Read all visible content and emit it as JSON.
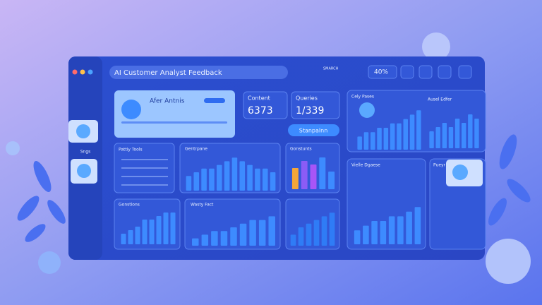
{
  "header": {
    "title": "AI Customer Analyst Feedback",
    "search": "SMARCH",
    "badge": "40%"
  },
  "sidebar": {
    "label": "Sngs"
  },
  "profile": {
    "name": "Afer Antnis"
  },
  "stats": [
    {
      "label": "Content",
      "value": "6373"
    },
    {
      "label": "Queries",
      "value": "1/339"
    }
  ],
  "button": "Stanpalnn",
  "panels": {
    "tools": "Pattiy Tools",
    "profile_card": "Pueyr"
  },
  "charts": [
    {
      "type": "bar",
      "title": "Gentrpane",
      "values": [
        4,
        5,
        6,
        6,
        7,
        8,
        9,
        8,
        7,
        6,
        6,
        5
      ],
      "color": "#3d8bff",
      "ylim": [
        0,
        10
      ]
    },
    {
      "type": "bar",
      "title": "Gonstunts",
      "values": [
        6,
        8,
        7,
        9,
        5
      ],
      "colors": [
        "#f5a63a",
        "#8b5cf6",
        "#a855f7",
        "#3d8bff",
        "#3d8bff"
      ],
      "color": "#3d8bff",
      "ylim": [
        0,
        10
      ]
    },
    {
      "type": "bar",
      "title": "Gonstions",
      "values": [
        3,
        4,
        5,
        7,
        7,
        8,
        9,
        9
      ],
      "color": "#3d8bff",
      "ylim": [
        0,
        10
      ]
    },
    {
      "type": "bar",
      "title": "Wasty Fact",
      "values": [
        2,
        3,
        4,
        4,
        5,
        6,
        7,
        7,
        8
      ],
      "color": "#3d8bff",
      "ylim": [
        0,
        10
      ]
    },
    {
      "type": "bar",
      "values": [
        3,
        5,
        6,
        7,
        8,
        9
      ],
      "color": "#2f7cf6",
      "ylim": [
        0,
        10
      ]
    },
    {
      "type": "bar",
      "title": "Cely Pases",
      "values": [
        3,
        4,
        4,
        5,
        5,
        6,
        6,
        7,
        8,
        9
      ],
      "color": "#3d8bff",
      "ylim": [
        0,
        10
      ]
    },
    {
      "type": "bar",
      "title": "Ausel Edfer",
      "values": [
        4,
        5,
        6,
        5,
        7,
        6,
        8,
        7
      ],
      "color": "#3d8bff",
      "ylim": [
        0,
        10
      ]
    },
    {
      "type": "bar",
      "title": "Vielle Dgaese",
      "values": [
        3,
        4,
        5,
        5,
        6,
        6,
        7,
        8
      ],
      "color": "#3d8bff",
      "ylim": [
        0,
        10
      ]
    }
  ]
}
